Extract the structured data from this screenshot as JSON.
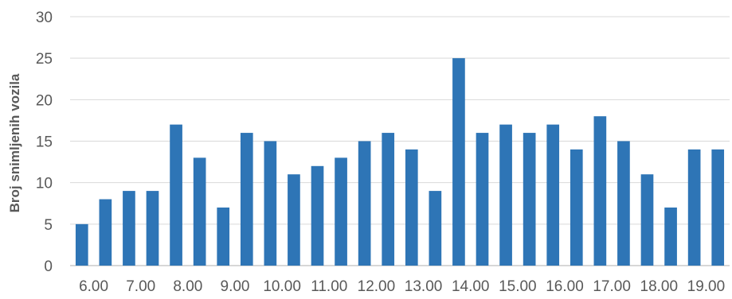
{
  "chart_data": {
    "type": "bar",
    "ylabel": "Broj snimljenih vozila",
    "xlabel": "",
    "ylim": [
      0,
      30
    ],
    "yticks": [
      0,
      5,
      10,
      15,
      20,
      25,
      30
    ],
    "grid": true,
    "bar_color": "#2e75b6",
    "x_tick_labels": [
      "6.00",
      "7.00",
      "8.00",
      "9.00",
      "10.00",
      "11.00",
      "12.00",
      "13.00",
      "14.00",
      "15.00",
      "16.00",
      "17.00",
      "18.00",
      "19.00"
    ],
    "values": [
      5,
      8,
      9,
      9,
      17,
      13,
      7,
      16,
      15,
      11,
      12,
      13,
      15,
      16,
      14,
      9,
      25,
      16,
      17,
      16,
      17,
      14,
      18,
      15,
      11,
      7,
      14,
      14
    ]
  }
}
